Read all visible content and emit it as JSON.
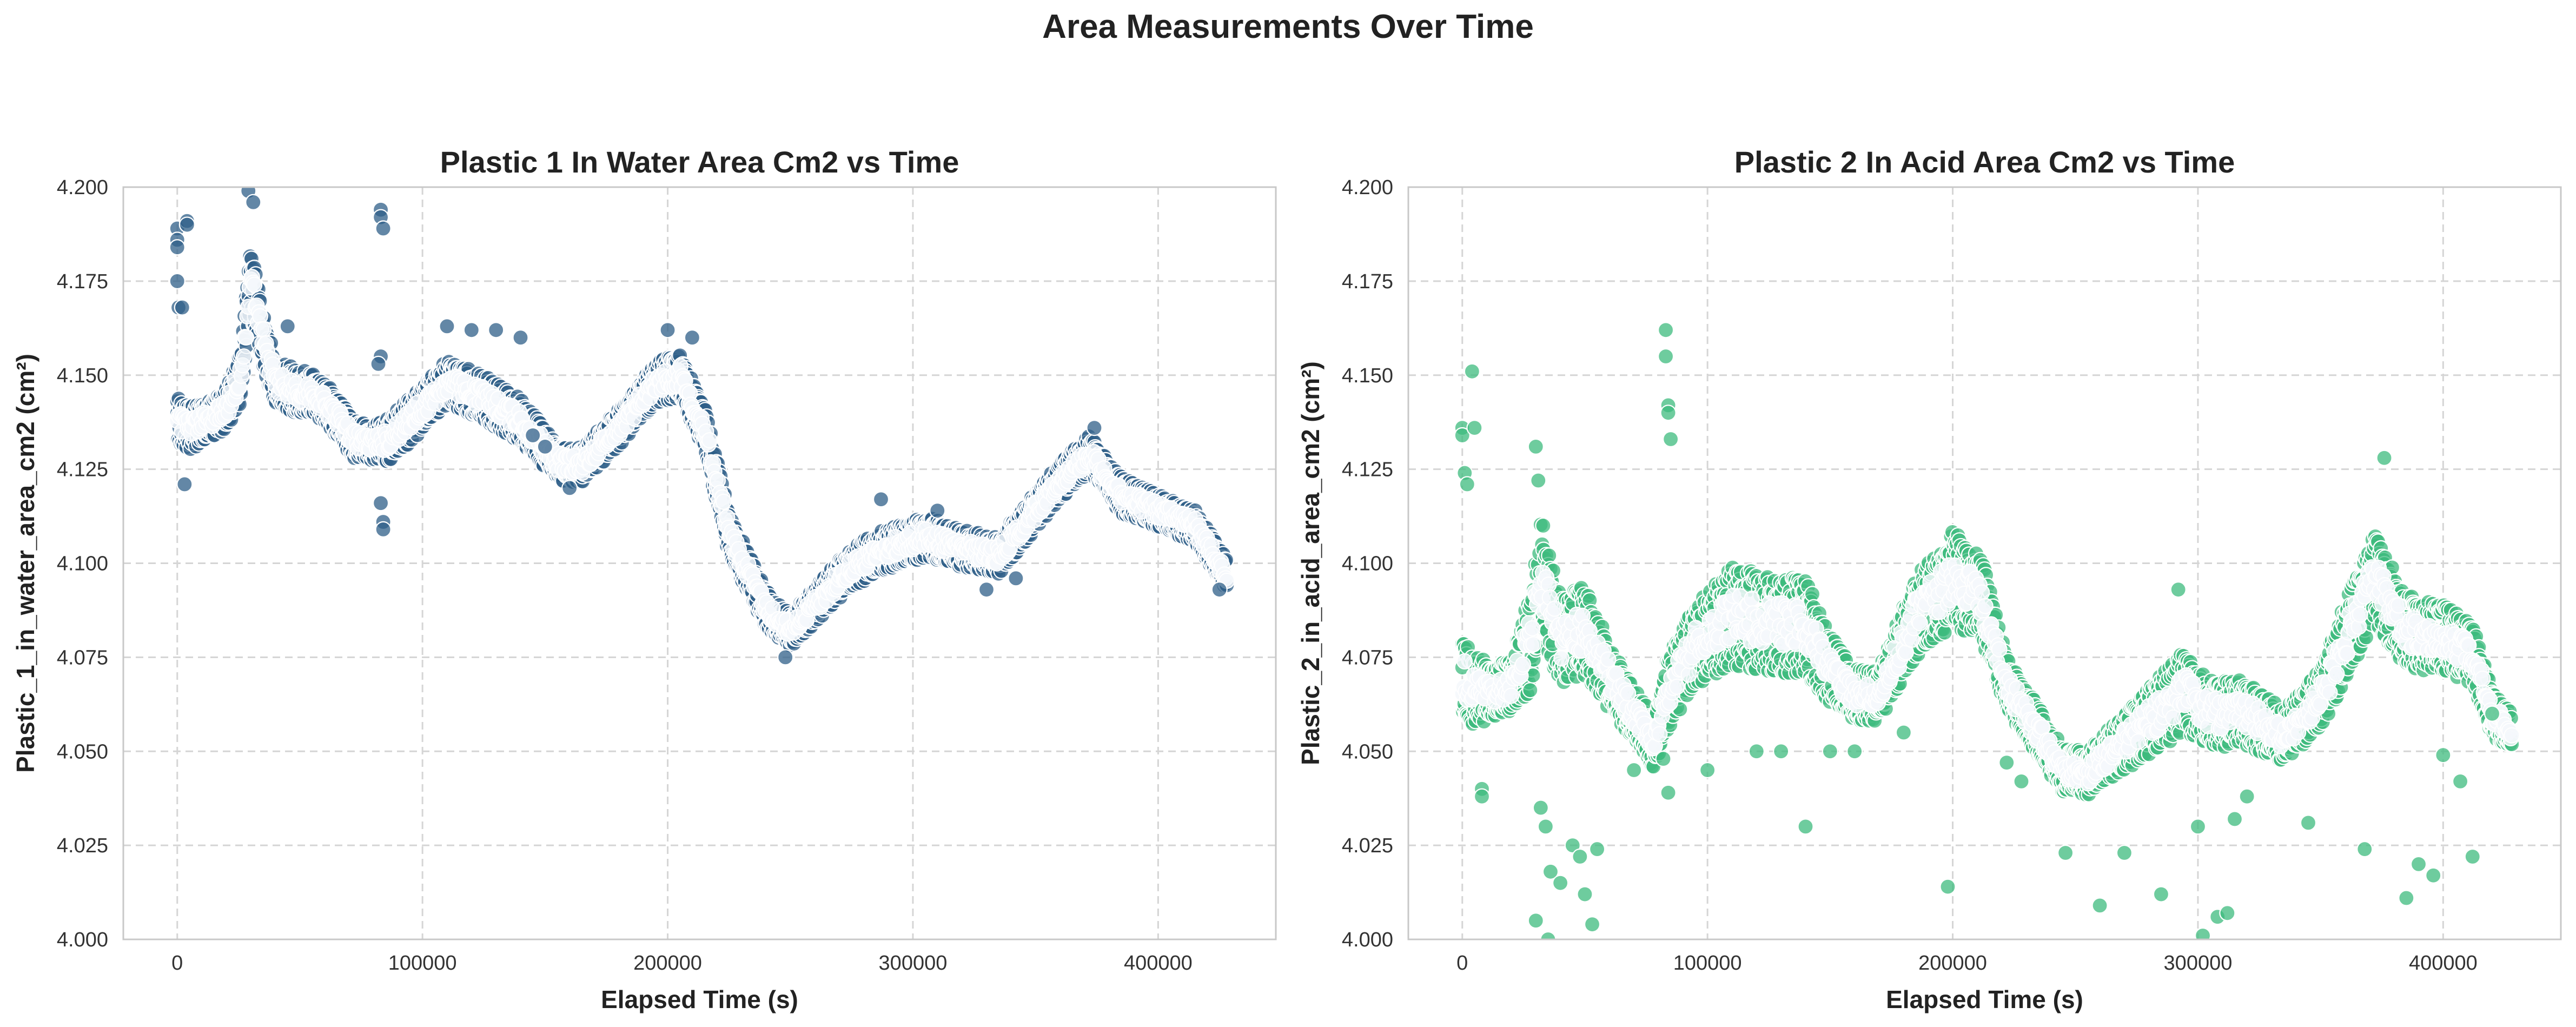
{
  "figure": {
    "suptitle": "Area Measurements Over Time"
  },
  "chart_data": [
    {
      "type": "scatter",
      "title": "Plastic 1 In Water Area Cm2 vs Time",
      "xlabel": "Elapsed Time (s)",
      "ylabel": "Plastic_1_in_water_area_cm2 (cm²)",
      "xlim": [
        -22000,
        448000
      ],
      "ylim": [
        4.0,
        4.2
      ],
      "xticks": [
        0,
        100000,
        200000,
        300000,
        400000
      ],
      "xtick_labels": [
        "0",
        "100000",
        "200000",
        "300000",
        "400000"
      ],
      "yticks": [
        4.0,
        4.025,
        4.05,
        4.075,
        4.1,
        4.125,
        4.15,
        4.175,
        4.2
      ],
      "ytick_labels": [
        "4.000",
        "4.025",
        "4.050",
        "4.075",
        "4.100",
        "4.125",
        "4.150",
        "4.175",
        "4.200"
      ],
      "grid": true,
      "color": "#2f5f88",
      "band": [
        [
          0,
          4.138,
          0.012
        ],
        [
          5000,
          4.136,
          0.012
        ],
        [
          12000,
          4.138,
          0.011
        ],
        [
          20000,
          4.141,
          0.011
        ],
        [
          26000,
          4.15,
          0.014
        ],
        [
          30000,
          4.176,
          0.018
        ],
        [
          34000,
          4.162,
          0.016
        ],
        [
          40000,
          4.148,
          0.012
        ],
        [
          48000,
          4.146,
          0.012
        ],
        [
          56000,
          4.145,
          0.011
        ],
        [
          64000,
          4.14,
          0.011
        ],
        [
          72000,
          4.133,
          0.01
        ],
        [
          80000,
          4.132,
          0.01
        ],
        [
          86000,
          4.133,
          0.012
        ],
        [
          95000,
          4.138,
          0.012
        ],
        [
          110000,
          4.148,
          0.012
        ],
        [
          125000,
          4.144,
          0.012
        ],
        [
          140000,
          4.138,
          0.012
        ],
        [
          155000,
          4.127,
          0.01
        ],
        [
          165000,
          4.126,
          0.01
        ],
        [
          180000,
          4.136,
          0.01
        ],
        [
          195000,
          4.148,
          0.011
        ],
        [
          205000,
          4.15,
          0.012
        ],
        [
          215000,
          4.136,
          0.012
        ],
        [
          225000,
          4.108,
          0.012
        ],
        [
          240000,
          4.088,
          0.01
        ],
        [
          250000,
          4.082,
          0.009
        ],
        [
          260000,
          4.089,
          0.01
        ],
        [
          275000,
          4.099,
          0.011
        ],
        [
          290000,
          4.104,
          0.011
        ],
        [
          305000,
          4.107,
          0.011
        ],
        [
          320000,
          4.104,
          0.01
        ],
        [
          335000,
          4.102,
          0.01
        ],
        [
          345000,
          4.11,
          0.01
        ],
        [
          360000,
          4.122,
          0.01
        ],
        [
          372000,
          4.129,
          0.01
        ],
        [
          385000,
          4.118,
          0.01
        ],
        [
          400000,
          4.114,
          0.009
        ],
        [
          415000,
          4.11,
          0.009
        ],
        [
          428000,
          4.097,
          0.009
        ]
      ],
      "outliers": [
        [
          0,
          4.189
        ],
        [
          0,
          4.186
        ],
        [
          0,
          4.184
        ],
        [
          0,
          4.175
        ],
        [
          500,
          4.168
        ],
        [
          4000,
          4.191
        ],
        [
          4000,
          4.19
        ],
        [
          3000,
          4.121
        ],
        [
          2000,
          4.168
        ],
        [
          29000,
          4.199
        ],
        [
          31000,
          4.196
        ],
        [
          83000,
          4.194
        ],
        [
          83000,
          4.192
        ],
        [
          84000,
          4.189
        ],
        [
          83000,
          4.155
        ],
        [
          82000,
          4.153
        ],
        [
          83000,
          4.116
        ],
        [
          84000,
          4.111
        ],
        [
          84000,
          4.109
        ],
        [
          45000,
          4.163
        ],
        [
          110000,
          4.163
        ],
        [
          120000,
          4.162
        ],
        [
          130000,
          4.162
        ],
        [
          140000,
          4.16
        ],
        [
          145000,
          4.134
        ],
        [
          150000,
          4.131
        ],
        [
          160000,
          4.12
        ],
        [
          200000,
          4.162
        ],
        [
          210000,
          4.16
        ],
        [
          248000,
          4.075
        ],
        [
          287000,
          4.117
        ],
        [
          310000,
          4.114
        ],
        [
          330000,
          4.093
        ],
        [
          342000,
          4.096
        ],
        [
          374000,
          4.136
        ],
        [
          425000,
          4.093
        ]
      ]
    },
    {
      "type": "scatter",
      "title": "Plastic 2 In Acid Area Cm2 vs Time",
      "xlabel": "Elapsed Time (s)",
      "ylabel": "Plastic_2_in_acid_area_cm2 (cm²)",
      "xlim": [
        -22000,
        448000
      ],
      "ylim": [
        4.0,
        4.2
      ],
      "xticks": [
        0,
        100000,
        200000,
        300000,
        400000
      ],
      "xtick_labels": [
        "0",
        "100000",
        "200000",
        "300000",
        "400000"
      ],
      "yticks": [
        4.0,
        4.025,
        4.05,
        4.075,
        4.1,
        4.125,
        4.15,
        4.175,
        4.2
      ],
      "ytick_labels": [
        "4.000",
        "4.025",
        "4.050",
        "4.075",
        "4.100",
        "4.125",
        "4.150",
        "4.175",
        "4.200"
      ],
      "grid": true,
      "color": "#3dbb7e",
      "band": [
        [
          0,
          4.07,
          0.024
        ],
        [
          5000,
          4.066,
          0.02
        ],
        [
          12000,
          4.066,
          0.014
        ],
        [
          20000,
          4.067,
          0.014
        ],
        [
          28000,
          4.08,
          0.028
        ],
        [
          32000,
          4.096,
          0.03
        ],
        [
          40000,
          4.08,
          0.024
        ],
        [
          50000,
          4.082,
          0.024
        ],
        [
          60000,
          4.07,
          0.018
        ],
        [
          70000,
          4.06,
          0.014
        ],
        [
          78000,
          4.052,
          0.014
        ],
        [
          84000,
          4.066,
          0.02
        ],
        [
          95000,
          4.078,
          0.022
        ],
        [
          110000,
          4.086,
          0.026
        ],
        [
          125000,
          4.084,
          0.026
        ],
        [
          140000,
          4.083,
          0.026
        ],
        [
          150000,
          4.072,
          0.018
        ],
        [
          160000,
          4.065,
          0.014
        ],
        [
          170000,
          4.065,
          0.014
        ],
        [
          185000,
          4.086,
          0.022
        ],
        [
          200000,
          4.096,
          0.026
        ],
        [
          212000,
          4.09,
          0.022
        ],
        [
          222000,
          4.068,
          0.014
        ],
        [
          232000,
          4.058,
          0.014
        ],
        [
          245000,
          4.045,
          0.012
        ],
        [
          255000,
          4.044,
          0.012
        ],
        [
          265000,
          4.05,
          0.014
        ],
        [
          280000,
          4.058,
          0.018
        ],
        [
          295000,
          4.066,
          0.022
        ],
        [
          305000,
          4.06,
          0.018
        ],
        [
          320000,
          4.06,
          0.018
        ],
        [
          335000,
          4.054,
          0.014
        ],
        [
          350000,
          4.064,
          0.016
        ],
        [
          362000,
          4.082,
          0.022
        ],
        [
          372000,
          4.096,
          0.024
        ],
        [
          385000,
          4.082,
          0.02
        ],
        [
          400000,
          4.08,
          0.018
        ],
        [
          412000,
          4.076,
          0.016
        ],
        [
          420000,
          4.06,
          0.012
        ],
        [
          428000,
          4.055,
          0.01
        ]
      ],
      "outliers": [
        [
          0,
          4.136
        ],
        [
          0,
          4.134
        ],
        [
          1000,
          4.124
        ],
        [
          2000,
          4.121
        ],
        [
          4000,
          4.151
        ],
        [
          5000,
          4.136
        ],
        [
          8000,
          4.04
        ],
        [
          8000,
          4.038
        ],
        [
          30000,
          4.131
        ],
        [
          31000,
          4.122
        ],
        [
          33000,
          4.11
        ],
        [
          32000,
          4.035
        ],
        [
          34000,
          4.03
        ],
        [
          36000,
          4.018
        ],
        [
          30000,
          4.005
        ],
        [
          35000,
          4.0
        ],
        [
          40000,
          4.015
        ],
        [
          45000,
          4.025
        ],
        [
          48000,
          4.022
        ],
        [
          50000,
          4.012
        ],
        [
          53000,
          4.004
        ],
        [
          55000,
          4.024
        ],
        [
          83000,
          4.162
        ],
        [
          83000,
          4.155
        ],
        [
          84000,
          4.142
        ],
        [
          84000,
          4.14
        ],
        [
          85000,
          4.133
        ],
        [
          82000,
          4.048
        ],
        [
          84000,
          4.039
        ],
        [
          70000,
          4.045
        ],
        [
          100000,
          4.045
        ],
        [
          120000,
          4.05
        ],
        [
          130000,
          4.05
        ],
        [
          140000,
          4.03
        ],
        [
          150000,
          4.05
        ],
        [
          160000,
          4.05
        ],
        [
          180000,
          4.055
        ],
        [
          198000,
          4.014
        ],
        [
          222000,
          4.047
        ],
        [
          228000,
          4.042
        ],
        [
          246000,
          4.023
        ],
        [
          260000,
          4.009
        ],
        [
          270000,
          4.023
        ],
        [
          285000,
          4.012
        ],
        [
          292000,
          4.093
        ],
        [
          300000,
          4.03
        ],
        [
          302000,
          4.001
        ],
        [
          308000,
          4.006
        ],
        [
          312000,
          4.007
        ],
        [
          315000,
          4.032
        ],
        [
          320000,
          4.038
        ],
        [
          345000,
          4.031
        ],
        [
          368000,
          4.024
        ],
        [
          376000,
          4.128
        ],
        [
          385000,
          4.011
        ],
        [
          390000,
          4.02
        ],
        [
          396000,
          4.017
        ],
        [
          400000,
          4.049
        ],
        [
          407000,
          4.042
        ],
        [
          412000,
          4.022
        ],
        [
          420000,
          4.06
        ]
      ]
    }
  ]
}
